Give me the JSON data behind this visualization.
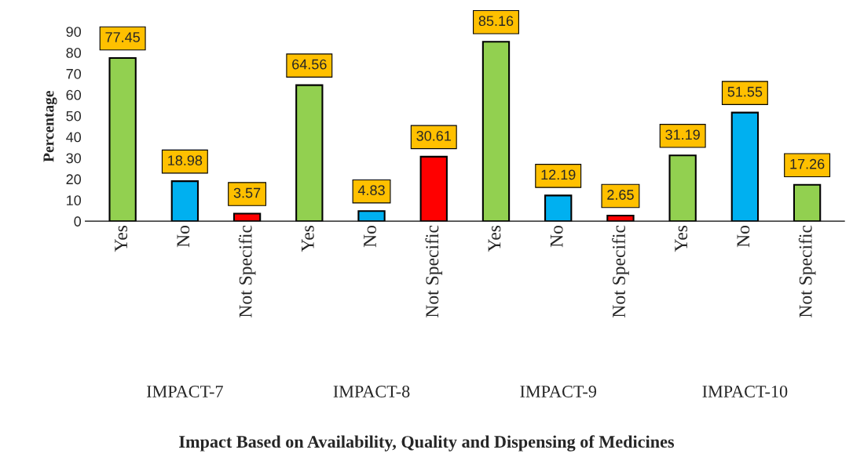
{
  "chart_data": {
    "type": "bar",
    "title": "Impact Based on Availability, Quality and Dispensing of Medicines",
    "ylabel": "Percentage",
    "categories": [
      "Yes",
      "No",
      "Not Specific",
      "Yes",
      "No",
      "Not Specific",
      "Yes",
      "No",
      "Not Specific",
      "Yes",
      "No",
      "Not Specific"
    ],
    "values": [
      77.45,
      18.98,
      3.57,
      64.56,
      4.83,
      30.61,
      85.16,
      12.19,
      2.65,
      31.19,
      51.55,
      17.26
    ],
    "colors": [
      "#92d050",
      "#00b0f0",
      "#ff0000",
      "#92d050",
      "#00b0f0",
      "#ff0000",
      "#92d050",
      "#00b0f0",
      "#ff0000",
      "#92d050",
      "#00b0f0",
      "#92d050"
    ],
    "ylim": [
      0,
      90
    ],
    "yticks": [
      0,
      10,
      20,
      30,
      40,
      50,
      60,
      70,
      80,
      90
    ],
    "grid": false,
    "legend": false,
    "data_labels": true,
    "annotations": [
      "IMPACT-7",
      "IMPACT-8",
      "IMPACT-9",
      "IMPACT-10"
    ]
  }
}
